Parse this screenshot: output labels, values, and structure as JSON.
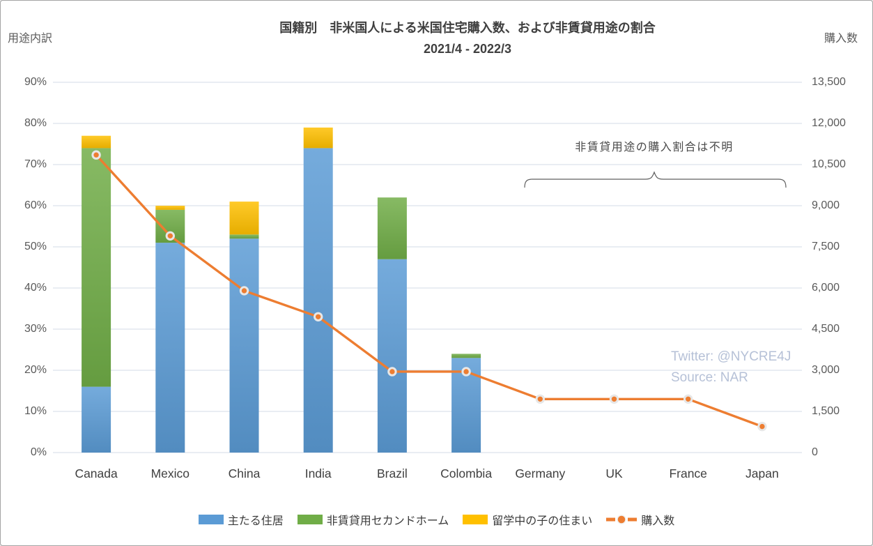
{
  "title": {
    "line1": "国籍別　非米国人による米国住宅購入数、および非賃貸用途の割合",
    "line2": "2021/4 - 2022/3"
  },
  "axes": {
    "left_title": "用途内訳",
    "right_title": "購入数",
    "left_ticks": [
      "0%",
      "10%",
      "20%",
      "30%",
      "40%",
      "50%",
      "60%",
      "70%",
      "80%",
      "90%"
    ],
    "right_ticks": [
      "0",
      "1,500",
      "3,000",
      "4,500",
      "6,000",
      "7,500",
      "9,000",
      "10,500",
      "12,000",
      "13,500"
    ]
  },
  "annotation": {
    "text": "非賃貸用途の購入割合は不明"
  },
  "watermark": {
    "line1": "Twitter: @NYCRE4J",
    "line2": "Source: NAR",
    "color": "#B6C1D7"
  },
  "legend": {
    "position": "bottom",
    "items": [
      {
        "label": "主たる住居",
        "color": "#5B9BD5",
        "marker": "rect"
      },
      {
        "label": "非賃貸用セカンドホーム",
        "color": "#70AD47",
        "marker": "rect"
      },
      {
        "label": "留学中の子の住まい",
        "color": "#FFC000",
        "marker": "rect"
      },
      {
        "label": "購入数",
        "color": "#ED7D31",
        "marker": "line"
      }
    ]
  },
  "chart_data": [
    {
      "type": "bar",
      "stacked": true,
      "axis": "left",
      "ylabel": "用途内訳 (%)",
      "ylim": [
        0,
        90
      ],
      "grid": true,
      "categories": [
        "Canada",
        "Mexico",
        "China",
        "India",
        "Brazil",
        "Colombia",
        "Germany",
        "UK",
        "France",
        "Japan"
      ],
      "series": [
        {
          "name": "主たる住居",
          "color": "#5B9BD5",
          "values": [
            16,
            51,
            52,
            74,
            47,
            23,
            0,
            0,
            0,
            0
          ]
        },
        {
          "name": "非賃貸用セカンドホーム",
          "color": "#70AD47",
          "values": [
            58,
            8,
            1,
            0,
            15,
            1,
            0,
            0,
            0,
            0
          ]
        },
        {
          "name": "留学中の子の住まい",
          "color": "#FFC000",
          "values": [
            3,
            1,
            8,
            5,
            0,
            0,
            0,
            0,
            0,
            0
          ]
        }
      ]
    },
    {
      "type": "line",
      "axis": "right",
      "name": "購入数",
      "color": "#ED7D31",
      "ylabel": "購入数",
      "ylim": [
        0,
        13500
      ],
      "categories": [
        "Canada",
        "Mexico",
        "China",
        "India",
        "Brazil",
        "Colombia",
        "Germany",
        "UK",
        "France",
        "Japan"
      ],
      "values": [
        10850,
        7900,
        5900,
        4950,
        2950,
        2950,
        1950,
        1950,
        1950,
        950
      ]
    }
  ],
  "colors": {
    "grid": "#DCE2EC",
    "marker_ring": "#E7E7E7",
    "brace": "#5f5f5f"
  }
}
